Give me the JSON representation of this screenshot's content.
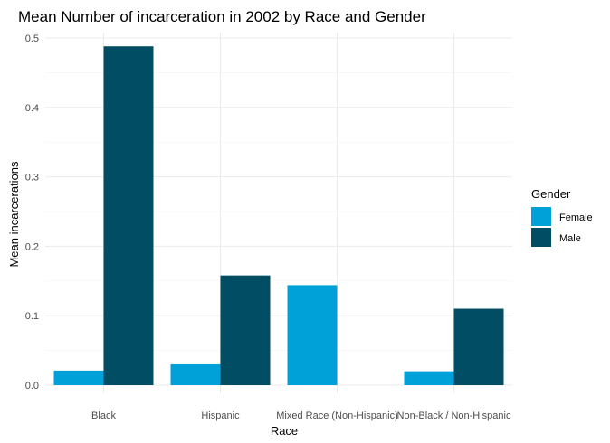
{
  "chart_data": {
    "type": "bar",
    "title": "Mean Number of incarceration in 2002 by Race and Gender",
    "xlabel": "Race",
    "ylabel": "Mean incarcerations",
    "categories": [
      "Black",
      "Hispanic",
      "Mixed Race (Non-Hispanic)",
      "Non-Black / Non-Hispanic"
    ],
    "series": [
      {
        "name": "Female",
        "color": "#00a0d8",
        "values": [
          0.021,
          0.03,
          0.144,
          0.02
        ]
      },
      {
        "name": "Male",
        "color": "#014d64",
        "values": [
          0.488,
          0.158,
          null,
          0.11
        ]
      }
    ],
    "ylim": [
      0,
      0.5
    ],
    "yticks": [
      0.0,
      0.1,
      0.2,
      0.3,
      0.4,
      0.5
    ],
    "ytick_labels": [
      "0.0",
      "0.1",
      "0.2",
      "0.3",
      "0.4",
      "0.5"
    ],
    "legend": {
      "title": "Gender",
      "position": "right"
    },
    "grid": true
  }
}
